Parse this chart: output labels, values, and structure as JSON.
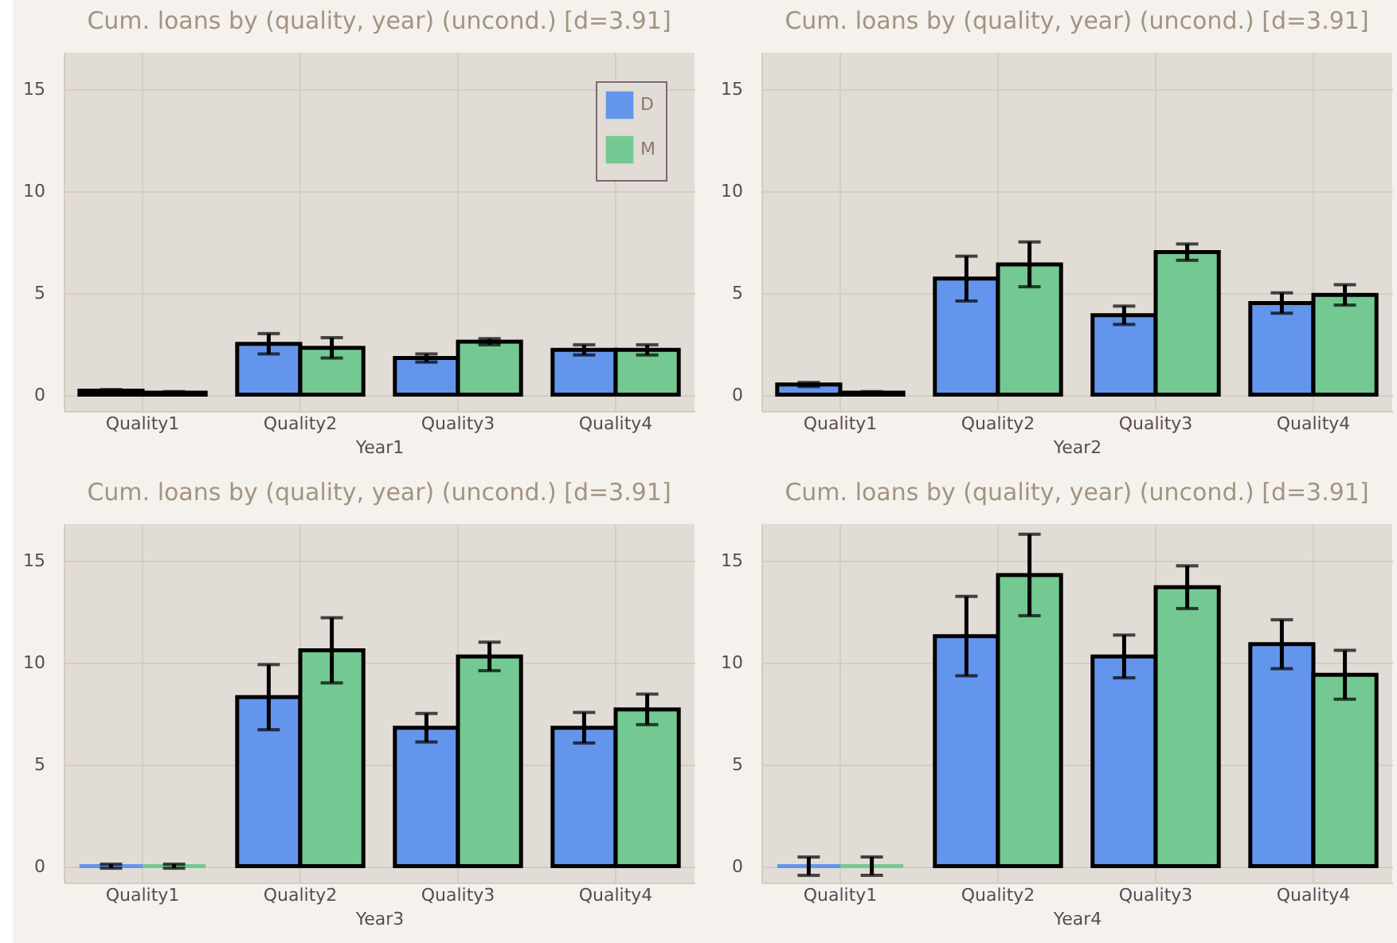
{
  "chart_data": [
    {
      "type": "bar",
      "title": "Cum. loans by (quality, year) (uncond.) [d=3.91]",
      "xlabel": "Year1",
      "categories": [
        "Quality1",
        "Quality2",
        "Quality3",
        "Quality4"
      ],
      "series": [
        {
          "name": "D",
          "color": "#6495ed",
          "values": [
            0.2,
            2.5,
            1.8,
            2.2
          ],
          "errors": [
            0.05,
            0.5,
            0.2,
            0.25
          ]
        },
        {
          "name": "M",
          "color": "#73c991",
          "values": [
            0.1,
            2.3,
            2.6,
            2.2
          ],
          "errors": [
            0.05,
            0.5,
            0.15,
            0.25
          ]
        }
      ],
      "ylim": [
        -0.8,
        16.8
      ],
      "yticks": [
        0,
        5,
        10,
        15
      ],
      "grid": true,
      "legend": "top right"
    },
    {
      "type": "bar",
      "title": "Cum. loans by (quality, year) (uncond.) [d=3.91]",
      "xlabel": "Year2",
      "categories": [
        "Quality1",
        "Quality2",
        "Quality3",
        "Quality4"
      ],
      "series": [
        {
          "color": "#6495ed",
          "values": [
            0.5,
            5.7,
            3.9,
            4.5
          ],
          "errors": [
            0.1,
            1.1,
            0.45,
            0.5
          ]
        },
        {
          "color": "#73c991",
          "values": [
            0.1,
            6.4,
            7.0,
            4.9
          ],
          "errors": [
            0.05,
            1.1,
            0.4,
            0.5
          ]
        }
      ],
      "ylim": [
        -0.8,
        16.8
      ],
      "yticks": [
        0,
        5,
        10,
        15
      ],
      "grid": true
    },
    {
      "type": "bar",
      "title": "Cum. loans by (quality, year) (uncond.) [d=3.91]",
      "xlabel": "Year3",
      "categories": [
        "Quality1",
        "Quality2",
        "Quality3",
        "Quality4"
      ],
      "series": [
        {
          "color": "#6495ed",
          "values": [
            0,
            8.3,
            6.8,
            6.8
          ],
          "errors": [
            0.1,
            1.6,
            0.7,
            0.75
          ]
        },
        {
          "color": "#73c991",
          "values": [
            0,
            10.6,
            10.3,
            7.7
          ],
          "errors": [
            0.1,
            1.6,
            0.7,
            0.75
          ]
        }
      ],
      "ylim": [
        -0.8,
        16.8
      ],
      "yticks": [
        0,
        5,
        10,
        15
      ],
      "grid": true
    },
    {
      "type": "bar",
      "title": "Cum. loans by (quality, year) (uncond.) [d=3.91]",
      "xlabel": "Year4",
      "categories": [
        "Quality1",
        "Quality2",
        "Quality3",
        "Quality4"
      ],
      "series": [
        {
          "color": "#6495ed",
          "values": [
            0,
            11.3,
            10.3,
            10.9
          ],
          "errors": [
            0.45,
            1.95,
            1.05,
            1.2
          ]
        },
        {
          "color": "#73c991",
          "values": [
            0,
            14.3,
            13.7,
            9.4
          ],
          "errors": [
            0.45,
            2.0,
            1.05,
            1.2
          ]
        }
      ],
      "ylim": [
        -0.8,
        16.8
      ],
      "yticks": [
        0,
        5,
        10,
        15
      ],
      "grid": true
    }
  ]
}
